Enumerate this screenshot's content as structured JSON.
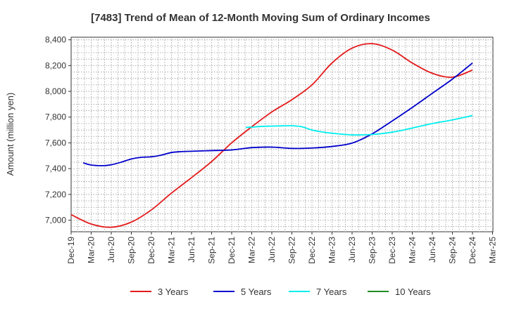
{
  "chart_data": {
    "type": "line",
    "title": "[7483]  Trend of Mean of 12-Month Moving Sum of Ordinary Incomes",
    "ylabel": "Amount (million yen)",
    "xlabel": "",
    "ylim": [
      6910,
      8420
    ],
    "yticks": [
      7000,
      7200,
      7400,
      7600,
      7800,
      8000,
      8200,
      8400
    ],
    "ytick_labels": [
      "7,000",
      "7,200",
      "7,400",
      "7,600",
      "7,800",
      "8,000",
      "8,200",
      "8,400"
    ],
    "xtick_labels": [
      "Dec-19",
      "Mar-20",
      "Jun-20",
      "Sep-20",
      "Dec-20",
      "Mar-21",
      "Jun-21",
      "Sep-21",
      "Dec-21",
      "Mar-22",
      "Jun-22",
      "Sep-22",
      "Dec-22",
      "Mar-23",
      "Jun-23",
      "Sep-23",
      "Dec-23",
      "Mar-24",
      "Jun-24",
      "Sep-24",
      "Dec-24",
      "Mar-25"
    ],
    "grid": true,
    "legend_position": "bottom",
    "series": [
      {
        "name": "3 Years",
        "color": "#e41a1c",
        "points": [
          [
            0,
            7043
          ],
          [
            1,
            6970
          ],
          [
            2,
            6945
          ],
          [
            3,
            6985
          ],
          [
            4,
            7080
          ],
          [
            5,
            7210
          ],
          [
            6,
            7330
          ],
          [
            7,
            7455
          ],
          [
            8,
            7600
          ],
          [
            9,
            7725
          ],
          [
            10,
            7840
          ],
          [
            11,
            7935
          ],
          [
            12,
            8050
          ],
          [
            13,
            8220
          ],
          [
            14,
            8335
          ],
          [
            15,
            8370
          ],
          [
            16,
            8320
          ],
          [
            17,
            8220
          ],
          [
            18,
            8140
          ],
          [
            19,
            8110
          ],
          [
            20,
            8165
          ]
        ]
      },
      {
        "name": "5 Years",
        "color": "#0000cc",
        "points": [
          [
            0.6,
            7445
          ],
          [
            1,
            7428
          ],
          [
            1.6,
            7423
          ],
          [
            2,
            7430
          ],
          [
            2.5,
            7450
          ],
          [
            3,
            7475
          ],
          [
            3.5,
            7488
          ],
          [
            4,
            7492
          ],
          [
            4.5,
            7505
          ],
          [
            5,
            7525
          ],
          [
            5.5,
            7532
          ],
          [
            6,
            7535
          ],
          [
            7,
            7540
          ],
          [
            8,
            7545
          ],
          [
            9,
            7563
          ],
          [
            10,
            7567
          ],
          [
            11,
            7557
          ],
          [
            12,
            7560
          ],
          [
            13,
            7572
          ],
          [
            14,
            7598
          ],
          [
            15,
            7670
          ],
          [
            16,
            7770
          ],
          [
            17,
            7875
          ],
          [
            18,
            7985
          ],
          [
            19,
            8095
          ],
          [
            20,
            8220
          ]
        ]
      },
      {
        "name": "7 Years",
        "color": "#00eeee",
        "points": [
          [
            8.7,
            7720
          ],
          [
            9,
            7722
          ],
          [
            9.5,
            7728
          ],
          [
            10,
            7730
          ],
          [
            10.5,
            7732
          ],
          [
            11,
            7733
          ],
          [
            11.5,
            7725
          ],
          [
            12,
            7700
          ],
          [
            12.5,
            7685
          ],
          [
            13,
            7675
          ],
          [
            14,
            7662
          ],
          [
            15,
            7665
          ],
          [
            16,
            7683
          ],
          [
            17,
            7715
          ],
          [
            18,
            7750
          ],
          [
            19,
            7778
          ],
          [
            20,
            7812
          ]
        ]
      },
      {
        "name": "10 Years",
        "color": "#228b22",
        "points": []
      }
    ]
  }
}
